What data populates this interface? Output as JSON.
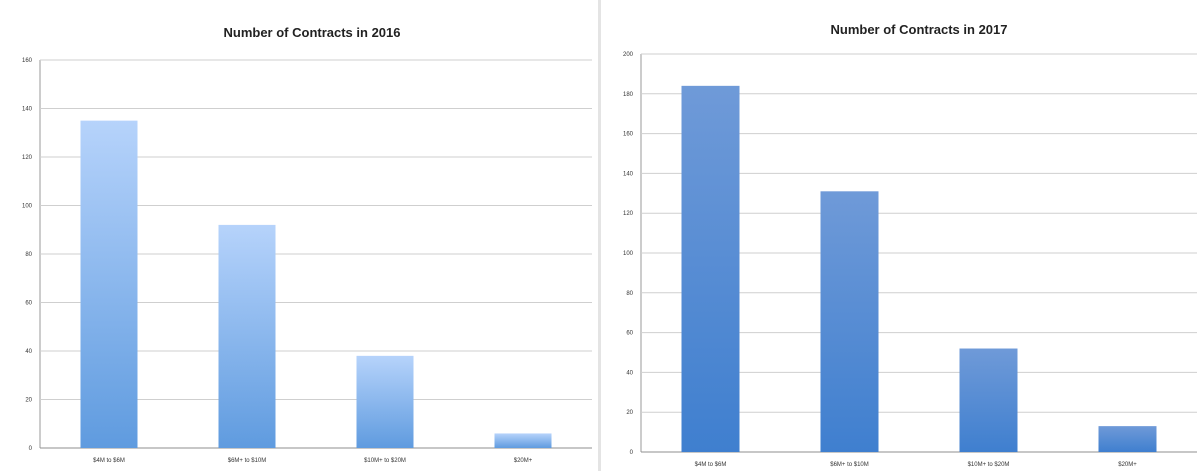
{
  "chart_data": [
    {
      "type": "bar",
      "title": "Number of Contracts in 2016",
      "categories": [
        "$4M to $6M",
        "$6M+ to $10M",
        "$10M+ to $20M",
        "$20M+"
      ],
      "values": [
        135,
        92,
        38,
        6
      ],
      "ylim": [
        0,
        160
      ],
      "yticks": [
        0,
        20,
        40,
        60,
        80,
        100,
        120,
        140,
        160
      ],
      "grid": true,
      "bar_color_top": "#b6d3fb",
      "bar_color_bottom": "#5f9bdf"
    },
    {
      "type": "bar",
      "title": "Number of Contracts in 2017",
      "categories": [
        "$4M to $6M",
        "$6M+ to $10M",
        "$10M+ to $20M",
        "$20M+"
      ],
      "values": [
        184,
        131,
        52,
        13
      ],
      "ylim": [
        0,
        200
      ],
      "yticks": [
        0,
        20,
        40,
        60,
        80,
        100,
        120,
        140,
        160,
        180,
        200
      ],
      "grid": true,
      "bar_color_top": "#6f9ad8",
      "bar_color_bottom": "#3f7fcf"
    }
  ]
}
